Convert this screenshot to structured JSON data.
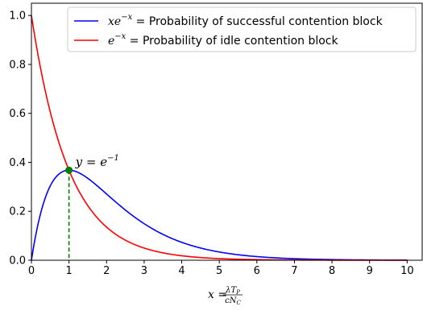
{
  "chart_data": {
    "type": "line",
    "xlim": [
      0,
      10.4
    ],
    "ylim": [
      0,
      1.05
    ],
    "xticks": [
      0,
      1,
      2,
      3,
      4,
      5,
      6,
      7,
      8,
      9,
      10
    ],
    "yticks": [
      0.0,
      0.2,
      0.4,
      0.6,
      0.8,
      1.0
    ],
    "ytick_labels": [
      "0.0",
      "0.2",
      "0.4",
      "0.6",
      "0.8",
      "1.0"
    ],
    "grid": false,
    "legend_position": "top-right",
    "series": [
      {
        "name": "xe^{-x} = Probability of successful contention block",
        "legend_math": "xe",
        "legend_sup": "−x",
        "legend_rest": " = Probability of successful contention block",
        "color": "#0000ff",
        "function": "x*exp(-x)",
        "x": [
          0,
          0.25,
          0.5,
          0.75,
          1,
          1.5,
          2,
          2.5,
          3,
          4,
          5,
          6,
          7,
          8,
          9,
          10
        ],
        "values": [
          0,
          0.195,
          0.303,
          0.354,
          0.368,
          0.335,
          0.271,
          0.205,
          0.149,
          0.073,
          0.034,
          0.015,
          0.006,
          0.003,
          0.001,
          0.0005
        ]
      },
      {
        "name": "e^{-x} = Probability of idle contention block",
        "legend_math": "e",
        "legend_sup": "−x",
        "legend_rest": " = Probability of idle contention block",
        "color": "#ff0000",
        "function": "exp(-x)",
        "x": [
          0,
          0.25,
          0.5,
          0.75,
          1,
          1.5,
          2,
          2.5,
          3,
          4,
          5,
          6,
          7,
          8,
          9,
          10
        ],
        "values": [
          1,
          0.779,
          0.607,
          0.472,
          0.368,
          0.223,
          0.135,
          0.082,
          0.05,
          0.018,
          0.007,
          0.002,
          0.001,
          0.0003,
          0.0001,
          5e-05
        ]
      }
    ],
    "annotation": {
      "point": [
        1,
        0.368
      ],
      "color": "#008000",
      "text_main": "y = e",
      "text_sup": "−1"
    },
    "xlabel": {
      "main": "x = ",
      "num": "λT",
      "num_sub": "P",
      "den": "cN",
      "den_sub": "C"
    }
  }
}
